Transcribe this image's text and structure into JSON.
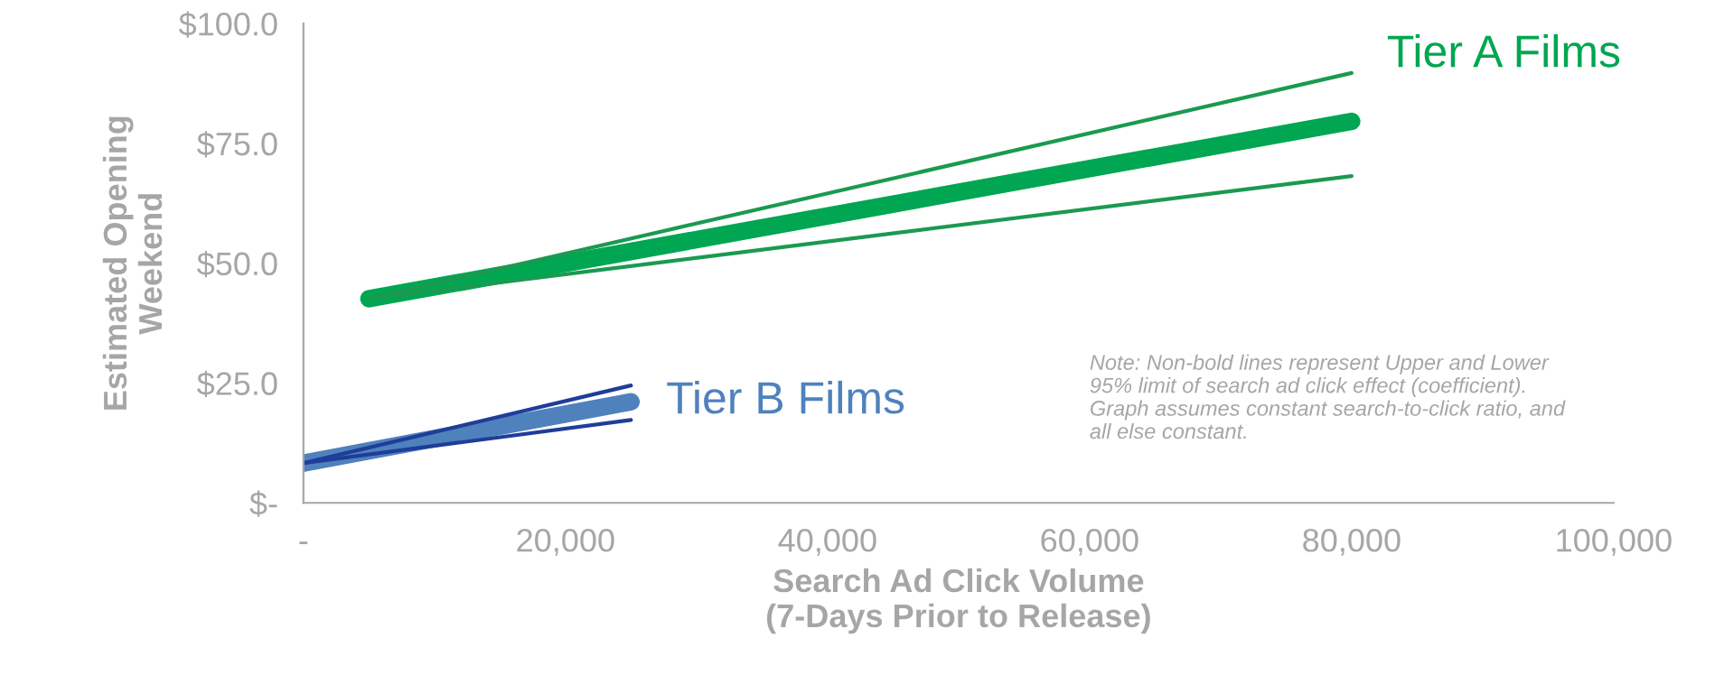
{
  "chart_data": {
    "type": "line",
    "xlabel": "Search Ad Click Volume\n(7-Days Prior to Release)",
    "ylabel": "Estimated Opening\nWeekend",
    "xlim": [
      0,
      100000
    ],
    "xticks": [
      {
        "value": 0,
        "label": "-"
      },
      {
        "value": 20000,
        "label": "20,000"
      },
      {
        "value": 40000,
        "label": "40,000"
      },
      {
        "value": 60000,
        "label": "60,000"
      },
      {
        "value": 80000,
        "label": "80,000"
      },
      {
        "value": 100000,
        "label": "100,000"
      }
    ],
    "ylim": [
      0,
      100
    ],
    "yticks": [
      {
        "value": 0,
        "label": "$-"
      },
      {
        "value": 25,
        "label": "$25.0"
      },
      {
        "value": 50,
        "label": "$50.0"
      },
      {
        "value": 75,
        "label": "$75.0"
      },
      {
        "value": 100,
        "label": "$100.0"
      }
    ],
    "grid": false,
    "legend": false,
    "marker": "none",
    "line_style": "solid",
    "series": [
      {
        "name": "Tier A Films",
        "color": "#00a651",
        "x": [
          5000,
          80000
        ],
        "values": [
          42.6,
          79.6
        ]
      },
      {
        "color": "#1a9a50",
        "x": [
          5000,
          80000
        ],
        "values": [
          42.6,
          89.7
        ]
      },
      {
        "color": "#1a9a50",
        "x": [
          5000,
          80000
        ],
        "values": [
          42.6,
          68.2
        ]
      },
      {
        "name": "Tier B Films",
        "color": "#4f81bd",
        "x": [
          0,
          25000
        ],
        "values": [
          8.3,
          21.1
        ]
      },
      {
        "color": "#1f3d99",
        "x": [
          0,
          25000
        ],
        "values": [
          8.3,
          24.5
        ]
      },
      {
        "color": "#1f3d99",
        "x": [
          0,
          25000
        ],
        "values": [
          8.3,
          17.3
        ]
      }
    ],
    "annotations": [
      "Note: Non-bold lines represent Upper and Lower\n95% limit of search ad click effect (coefficient).\nGraph assumes constant search-to-click ratio, and\nall else constant."
    ]
  }
}
